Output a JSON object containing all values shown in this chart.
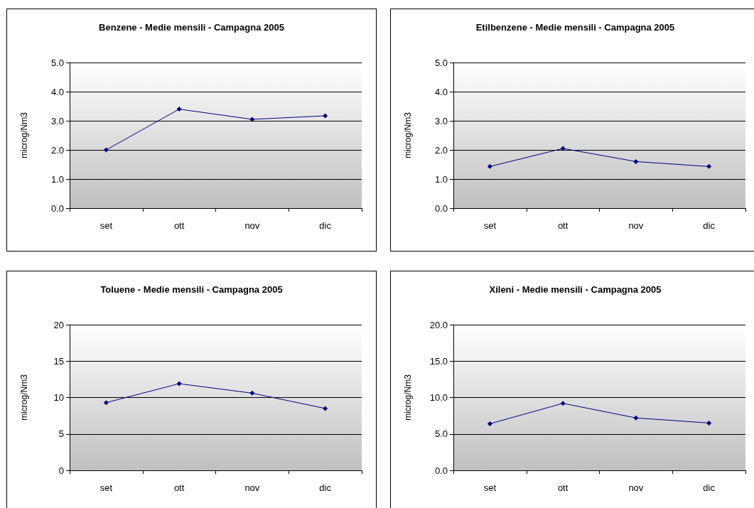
{
  "chart_data": [
    {
      "type": "line",
      "title": "Benzene - Medie mensili - Campagna 2005",
      "ylabel": "microg/Nm3",
      "categories": [
        "set",
        "ott",
        "nov",
        "dic"
      ],
      "series": [
        {
          "color": "#000080",
          "values": [
            2.0,
            3.4,
            3.05,
            3.17
          ]
        }
      ],
      "ylim": [
        0,
        5
      ],
      "yticks": [
        {
          "value": 0,
          "label": "0.0"
        },
        {
          "value": 1,
          "label": "1.0"
        },
        {
          "value": 2,
          "label": "2.0"
        },
        {
          "value": 3,
          "label": "3.0"
        },
        {
          "value": 4,
          "label": "4.0"
        },
        {
          "value": 5,
          "label": "5.0"
        }
      ],
      "grid": "y",
      "marker": "diamond",
      "line_style": "solid"
    },
    {
      "type": "line",
      "title": "Etilbenzene - Medie mensili - Campagna 2005",
      "ylabel": "microg/Nm3",
      "categories": [
        "set",
        "ott",
        "nov",
        "dic"
      ],
      "series": [
        {
          "color": "#000080",
          "values": [
            1.43,
            2.05,
            1.6,
            1.43
          ]
        }
      ],
      "ylim": [
        0,
        5
      ],
      "yticks": [
        {
          "value": 0,
          "label": "0.0"
        },
        {
          "value": 1,
          "label": "1.0"
        },
        {
          "value": 2,
          "label": "2.0"
        },
        {
          "value": 3,
          "label": "3.0"
        },
        {
          "value": 4,
          "label": "4.0"
        },
        {
          "value": 5,
          "label": "5.0"
        }
      ],
      "grid": "y",
      "marker": "diamond",
      "line_style": "solid"
    },
    {
      "type": "line",
      "title": "Toluene - Medie mensili - Campagna 2005",
      "ylabel": "microg/Nm3",
      "categories": [
        "set",
        "ott",
        "nov",
        "dic"
      ],
      "series": [
        {
          "color": "#000080",
          "values": [
            9.3,
            11.9,
            10.6,
            8.5
          ]
        }
      ],
      "ylim": [
        0,
        20
      ],
      "yticks": [
        0,
        5,
        10,
        15,
        20
      ],
      "grid": "y",
      "marker": "diamond",
      "line_style": "solid"
    },
    {
      "type": "line",
      "title": "Xileni - Medie mensili - Campagna 2005",
      "ylabel": "microg/Nm3",
      "categories": [
        "set",
        "ott",
        "nov",
        "dic"
      ],
      "series": [
        {
          "color": "#000080",
          "values": [
            6.4,
            9.2,
            7.2,
            6.5
          ]
        }
      ],
      "ylim": [
        0,
        20
      ],
      "yticks": [
        {
          "value": 0,
          "label": "0.0"
        },
        {
          "value": 5,
          "label": "5.0"
        },
        {
          "value": 10,
          "label": "10.0"
        },
        {
          "value": 15,
          "label": "15.0"
        },
        {
          "value": 20,
          "label": "20.0"
        }
      ],
      "grid": "y",
      "marker": "diamond",
      "line_style": "solid"
    }
  ]
}
